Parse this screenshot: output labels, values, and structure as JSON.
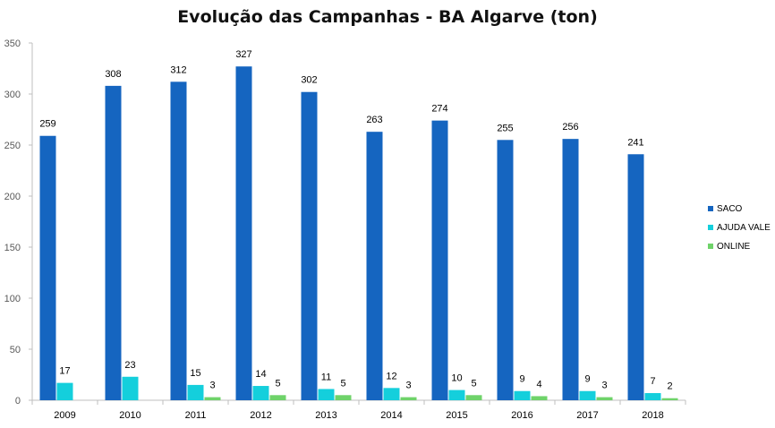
{
  "chart_data": {
    "type": "bar",
    "title": "Evolução das Campanhas - BA Algarve (ton)",
    "xlabel": "",
    "ylabel": "",
    "ylim": [
      0,
      350
    ],
    "yticks": [
      "0",
      "50",
      "100",
      "150",
      "200",
      "250",
      "300",
      "350"
    ],
    "grid": false,
    "legend_position": "right",
    "categories": [
      "2009",
      "2010",
      "2011",
      "2012",
      "2013",
      "2014",
      "2015",
      "2016",
      "2017",
      "2018"
    ],
    "series": [
      {
        "name": "SACO",
        "color": "#1565C0",
        "values": [
          259,
          308,
          312,
          327,
          302,
          263,
          274,
          255,
          256,
          241
        ]
      },
      {
        "name": "AJUDA VALE",
        "color": "#14CFDC",
        "values": [
          17,
          23,
          15,
          14,
          11,
          12,
          10,
          9,
          9,
          7
        ]
      },
      {
        "name": "ONLINE",
        "color": "#6FD36A",
        "values": [
          null,
          null,
          3,
          5,
          5,
          3,
          5,
          4,
          3,
          2
        ]
      }
    ]
  }
}
